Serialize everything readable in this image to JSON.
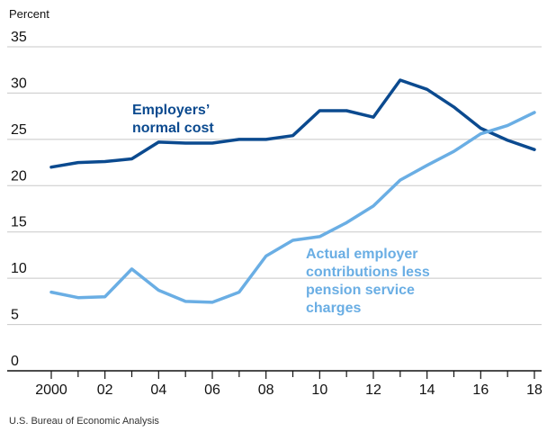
{
  "chart_data": {
    "type": "line",
    "ylabel": "Percent",
    "xlabel": "",
    "ylim": [
      0,
      35
    ],
    "xlim": [
      2000,
      2018
    ],
    "yticks": [
      0,
      5,
      10,
      15,
      20,
      25,
      30,
      35
    ],
    "xticks": [
      2000,
      2002,
      2004,
      2006,
      2008,
      2010,
      2012,
      2014,
      2016,
      2018
    ],
    "xtick_labels": [
      "2000",
      "02",
      "04",
      "06",
      "08",
      "10",
      "12",
      "14",
      "16",
      "18"
    ],
    "x": [
      2000,
      2001,
      2002,
      2003,
      2004,
      2005,
      2006,
      2007,
      2008,
      2009,
      2010,
      2011,
      2012,
      2013,
      2014,
      2015,
      2016,
      2017,
      2018
    ],
    "series": [
      {
        "name": "Employers' normal cost",
        "label_lines": [
          "Employers’",
          "normal cost"
        ],
        "color": "#0b4a8f",
        "values": [
          22.0,
          22.5,
          22.6,
          22.9,
          24.7,
          24.6,
          24.6,
          25.0,
          25.0,
          25.4,
          28.1,
          28.1,
          27.4,
          31.4,
          30.4,
          28.5,
          26.2,
          24.9,
          23.9
        ]
      },
      {
        "name": "Actual employer contributions less pension service charges",
        "label_lines": [
          "Actual employer",
          "contributions less",
          "pension service",
          "charges"
        ],
        "color": "#6aaee4",
        "values": [
          8.5,
          7.9,
          8.0,
          11.0,
          8.7,
          7.5,
          7.4,
          8.5,
          12.4,
          14.1,
          14.5,
          16.0,
          17.8,
          20.6,
          22.2,
          23.7,
          25.6,
          26.5,
          27.9
        ]
      }
    ],
    "grid": true,
    "legend": "inline"
  },
  "source": "U.S. Bureau of Economic Analysis"
}
